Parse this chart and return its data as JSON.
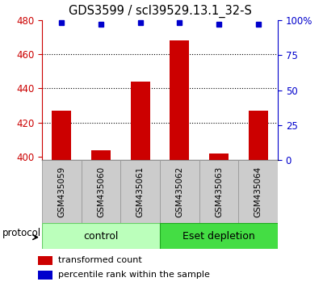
{
  "title": "GDS3599 / scl39529.13.1_32-S",
  "samples": [
    "GSM435059",
    "GSM435060",
    "GSM435061",
    "GSM435062",
    "GSM435063",
    "GSM435064"
  ],
  "red_values": [
    427,
    404,
    444,
    468,
    402,
    427
  ],
  "blue_values": [
    98,
    97,
    98,
    98,
    97,
    97
  ],
  "ylim_left": [
    398,
    480
  ],
  "ylim_right": [
    0,
    100
  ],
  "yticks_left": [
    400,
    420,
    440,
    460,
    480
  ],
  "yticks_right": [
    0,
    25,
    50,
    75,
    100
  ],
  "ytick_labels_right": [
    "0",
    "25",
    "50",
    "75",
    "100%"
  ],
  "hlines": [
    460,
    440,
    420
  ],
  "groups": [
    {
      "label": "control",
      "samples": [
        0,
        1,
        2
      ],
      "color": "#bbffbb",
      "border": "#66cc66"
    },
    {
      "label": "Eset depletion",
      "samples": [
        3,
        4,
        5
      ],
      "color": "#44dd44",
      "border": "#22aa22"
    }
  ],
  "bar_color": "#cc0000",
  "dot_color": "#0000cc",
  "bar_width": 0.5,
  "bar_base": 398,
  "legend_items": [
    {
      "color": "#cc0000",
      "label": "transformed count"
    },
    {
      "color": "#0000cc",
      "label": "percentile rank within the sample"
    }
  ],
  "protocol_label": "protocol",
  "bg_color": "#ffffff",
  "axis_color_left": "#cc0000",
  "axis_color_right": "#0000cc",
  "sample_area_color": "#cccccc",
  "sample_area_border": "#999999",
  "title_fontsize": 10.5,
  "tick_fontsize": 8.5,
  "sample_fontsize": 7.5,
  "group_fontsize": 9,
  "legend_fontsize": 8
}
